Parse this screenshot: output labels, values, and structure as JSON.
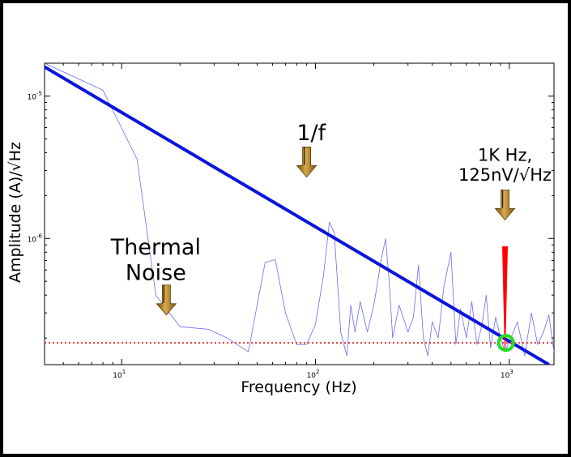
{
  "chart_data": {
    "type": "line",
    "xscale": "log",
    "yscale": "log",
    "xlim": [
      4,
      1700
    ],
    "ylim": [
      1.3e-07,
      1.7e-05
    ],
    "xlabel": "Frequency (Hz)",
    "ylabel": "Amplitude (A)/√Hz",
    "x_ticks": [
      {
        "value": 10,
        "base": "10",
        "exp": "1"
      },
      {
        "value": 100,
        "base": "10",
        "exp": "2"
      },
      {
        "value": 1000,
        "base": "10",
        "exp": "3"
      }
    ],
    "y_ticks": [
      {
        "value": 1e-05,
        "base": "10",
        "exp": "-5"
      },
      {
        "value": 1e-06,
        "base": "10",
        "exp": "-6"
      }
    ],
    "grid": false,
    "series": [
      {
        "style": "thin-line",
        "color": "#6b6bf0",
        "x": [
          4,
          8,
          12,
          15,
          20,
          28,
          35,
          45,
          55,
          62,
          70,
          80,
          90,
          100,
          110,
          118,
          125,
          135,
          145,
          152,
          160,
          170,
          185,
          200,
          218,
          230,
          240,
          250,
          270,
          300,
          320,
          340,
          360,
          380,
          400,
          430,
          460,
          500,
          530,
          560,
          600,
          640,
          680,
          720,
          760,
          800,
          850,
          900,
          950,
          1000,
          1050,
          1100,
          1200,
          1300,
          1400,
          1500,
          1600,
          1700
        ],
        "y": [
          1.7e-05,
          1.1e-05,
          3.6e-06,
          4e-07,
          2.4e-07,
          2.3e-07,
          2e-07,
          1.6e-07,
          6.8e-07,
          7.1e-07,
          3e-07,
          1.8e-07,
          1.8e-07,
          2.5e-07,
          5.5e-07,
          1.3e-06,
          1.1e-06,
          2.2e-07,
          1.5e-07,
          3.4e-07,
          2.2e-07,
          3.6e-07,
          2.2e-07,
          3.4e-07,
          7e-07,
          1e-06,
          5e-07,
          2e-07,
          3.4e-07,
          2.2e-07,
          2.8e-07,
          6.5e-07,
          2e-07,
          1.5e-07,
          2.6e-07,
          2e-07,
          4.6e-07,
          8e-07,
          1.8e-07,
          3.2e-07,
          2e-07,
          3.6e-07,
          1.8e-07,
          2.4e-07,
          4e-07,
          1.7e-07,
          2.8e-07,
          2e-07,
          1.6e-07,
          1.9e-07,
          2.2e-07,
          2.6e-07,
          1.5e-07,
          3e-07,
          1.8e-07,
          2.2e-07,
          2.9e-07,
          1.6e-07
        ]
      },
      {
        "style": "thick-line",
        "color": "#0a14dc",
        "x": [
          4,
          1600
        ],
        "y": [
          1.6e-05,
          1.3e-07
        ]
      },
      {
        "style": "dotted-line",
        "color": "#e8342e",
        "x": [
          4,
          1700
        ],
        "y": [
          1.85e-07,
          1.85e-07
        ]
      }
    ],
    "annotations": [
      {
        "text": "1/f",
        "x": 95,
        "y": 4.9e-06,
        "size": 27
      },
      {
        "lines": [
          "Thermal",
          "Noise"
        ],
        "x": 15,
        "y": 7.7e-07,
        "size": 27
      },
      {
        "lines": [
          "1K Hz,",
          "125nV/√Hz"
        ],
        "x": 950,
        "y": 3.5e-06,
        "size": 21
      }
    ],
    "arrows": [
      {
        "x": 90,
        "y": 2.7e-06
      },
      {
        "x": 17,
        "y": 2.9e-07
      },
      {
        "x": 950,
        "y": 1.35e-06
      }
    ],
    "marker_spike": {
      "x": 950,
      "y_top": 8.8e-07,
      "y_bottom": 1.6e-07,
      "color": "#ff0000"
    },
    "marker_circle": {
      "x": 960,
      "y": 1.85e-07,
      "color": "#22dd22"
    }
  }
}
